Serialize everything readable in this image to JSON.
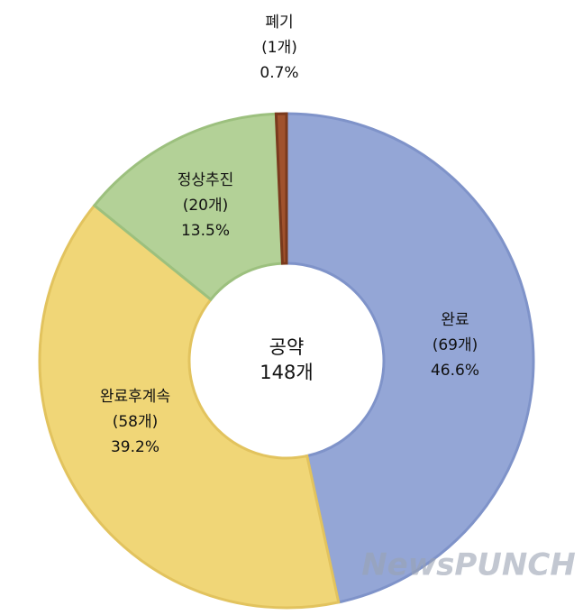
{
  "chart_data": {
    "type": "donut",
    "categories": [
      "완료",
      "완료후계속",
      "정상추진",
      "폐기"
    ],
    "values": [
      69,
      58,
      20,
      1
    ],
    "value_labels": [
      "(69개)",
      "(58개)",
      "(20개)",
      "(1개)"
    ],
    "percent_labels": [
      "46.6%",
      "39.2%",
      "13.5%",
      "0.7%"
    ],
    "colors": [
      "#94a6d6",
      "#f0d677",
      "#b3d197",
      "#a0522d"
    ],
    "center_label": [
      "공약",
      "148개"
    ],
    "watermark": "NewsPUNCH"
  }
}
